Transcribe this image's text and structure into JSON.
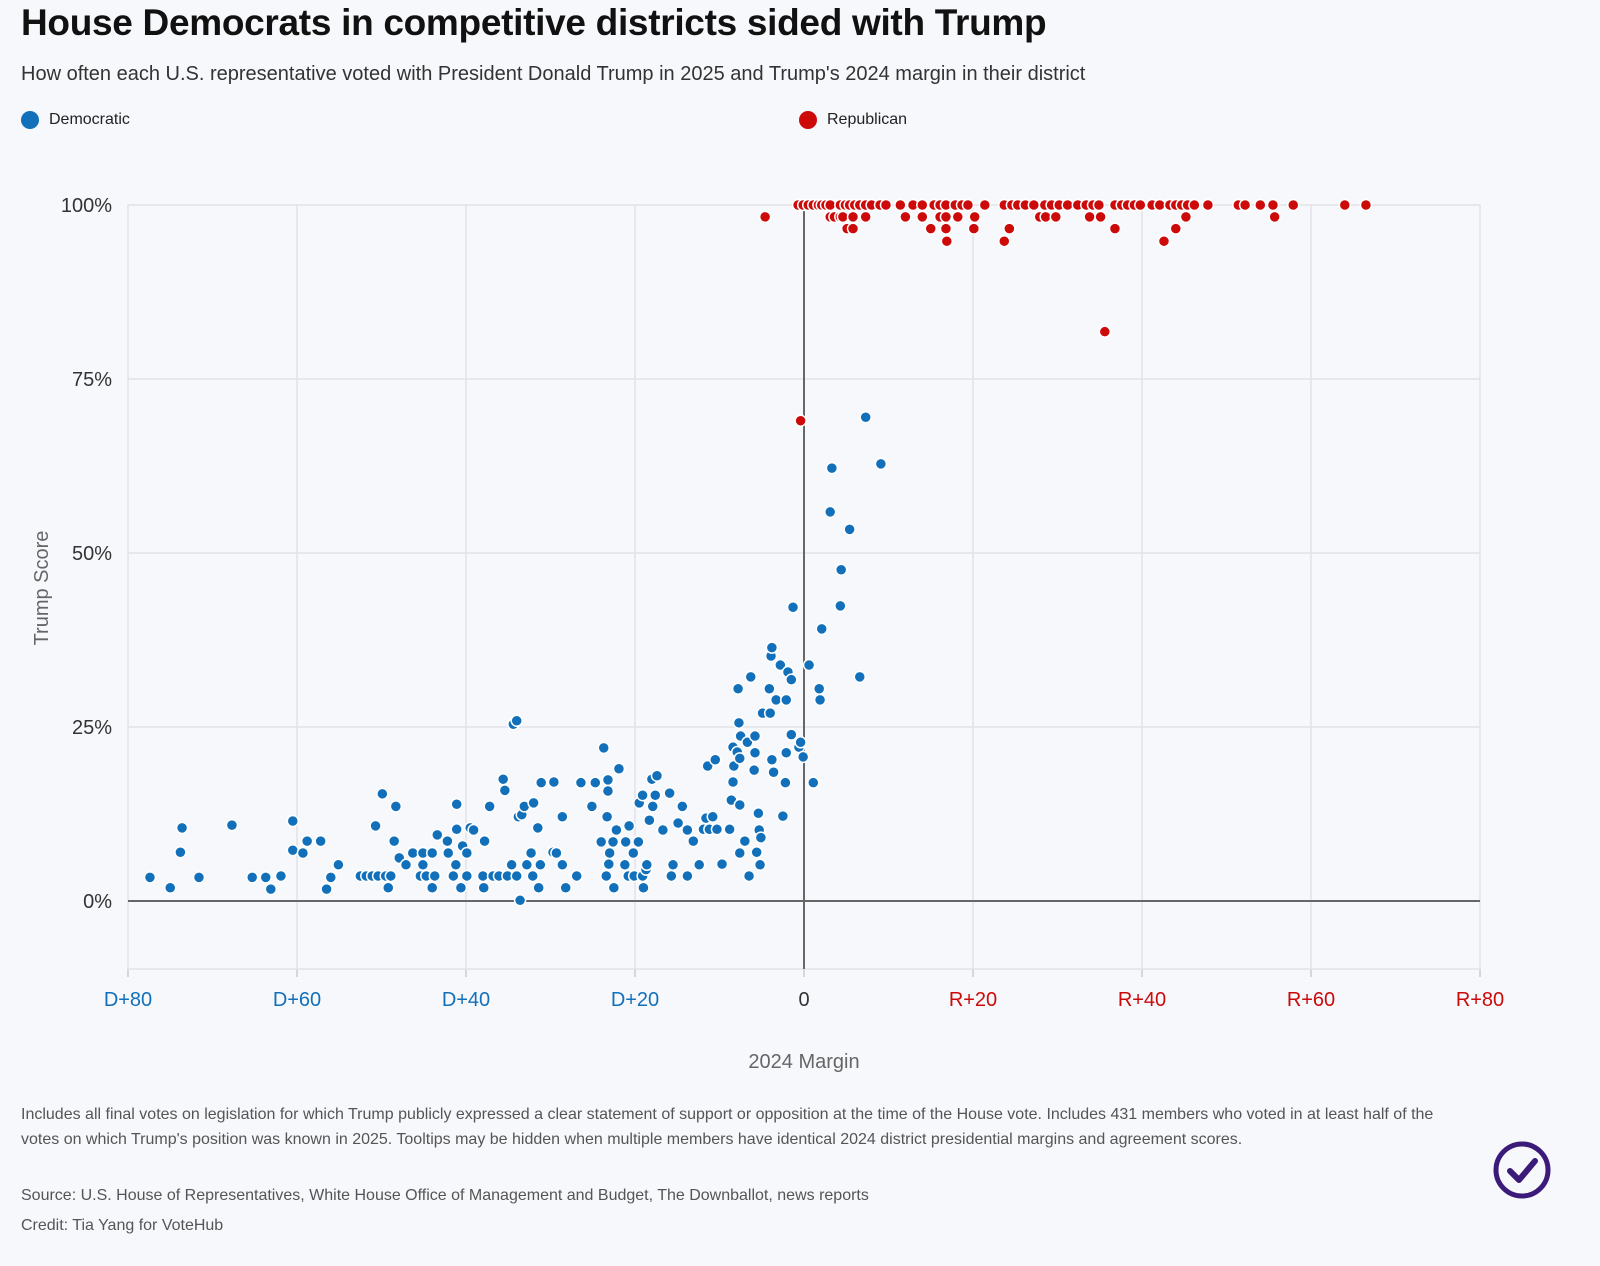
{
  "chart_data": {
    "type": "scatter",
    "title": "House Democrats in competitive districts sided with Trump",
    "subtitle": "How often each U.S. representative voted with President Donald Trump in 2025 and Trump's 2024 margin in their district",
    "xlabel": "2024 Margin",
    "ylabel": "Trump Score",
    "xlim": [
      -80,
      80
    ],
    "ylim": [
      -10,
      100
    ],
    "x_ticks": [
      {
        "value": -80,
        "label": "D+80"
      },
      {
        "value": -60,
        "label": "D+60"
      },
      {
        "value": -40,
        "label": "D+40"
      },
      {
        "value": -20,
        "label": "D+20"
      },
      {
        "value": 0,
        "label": "0"
      },
      {
        "value": 20,
        "label": "R+20"
      },
      {
        "value": 40,
        "label": "R+40"
      },
      {
        "value": 60,
        "label": "R+60"
      },
      {
        "value": 80,
        "label": "R+80"
      }
    ],
    "y_ticks": [
      {
        "value": 0,
        "label": "0%"
      },
      {
        "value": 25,
        "label": "25%"
      },
      {
        "value": 50,
        "label": "50%"
      },
      {
        "value": 75,
        "label": "75%"
      },
      {
        "value": 100,
        "label": "100%"
      }
    ],
    "grid": true,
    "legend_placement": "top",
    "series": [
      {
        "name": "Democratic",
        "color": "#1170b9",
        "points": [
          [
            -77.4,
            3.4
          ],
          [
            -75.0,
            1.9
          ],
          [
            -73.8,
            7.0
          ],
          [
            -73.6,
            10.5
          ],
          [
            -71.6,
            3.4
          ],
          [
            -67.7,
            10.9
          ],
          [
            -65.3,
            3.4
          ],
          [
            -63.7,
            3.4
          ],
          [
            -63.1,
            1.7
          ],
          [
            -61.9,
            3.6
          ],
          [
            -60.5,
            11.5
          ],
          [
            -60.5,
            7.3
          ],
          [
            -59.3,
            6.9
          ],
          [
            -58.8,
            8.6
          ],
          [
            -57.2,
            8.6
          ],
          [
            -56.5,
            1.7
          ],
          [
            -56.0,
            3.4
          ],
          [
            -55.1,
            5.2
          ],
          [
            -52.5,
            3.6
          ],
          [
            -51.8,
            3.6
          ],
          [
            -51.1,
            3.6
          ],
          [
            -50.7,
            10.8
          ],
          [
            -50.4,
            3.6
          ],
          [
            -49.9,
            15.4
          ],
          [
            -49.5,
            3.6
          ],
          [
            -49.2,
            1.9
          ],
          [
            -48.9,
            3.6
          ],
          [
            -48.5,
            8.6
          ],
          [
            -48.3,
            13.6
          ],
          [
            -47.9,
            6.2
          ],
          [
            -47.1,
            5.2
          ],
          [
            -46.3,
            6.9
          ],
          [
            -45.4,
            3.6
          ],
          [
            -45.1,
            6.9
          ],
          [
            -45.1,
            5.2
          ],
          [
            -44.7,
            3.6
          ],
          [
            -44.0,
            6.9
          ],
          [
            -44.0,
            1.9
          ],
          [
            -43.7,
            3.6
          ],
          [
            -43.4,
            9.5
          ],
          [
            -42.2,
            8.6
          ],
          [
            -42.1,
            6.9
          ],
          [
            -41.5,
            3.6
          ],
          [
            -41.2,
            5.2
          ],
          [
            -41.1,
            13.9
          ],
          [
            -41.1,
            10.3
          ],
          [
            -40.6,
            1.9
          ],
          [
            -40.4,
            7.9
          ],
          [
            -39.9,
            6.9
          ],
          [
            -39.9,
            3.6
          ],
          [
            -39.5,
            10.5
          ],
          [
            -39.1,
            10.2
          ],
          [
            -38.0,
            3.6
          ],
          [
            -37.9,
            1.9
          ],
          [
            -37.8,
            8.6
          ],
          [
            -37.2,
            13.6
          ],
          [
            -36.8,
            3.6
          ],
          [
            -36.1,
            3.6
          ],
          [
            -35.6,
            17.5
          ],
          [
            -35.4,
            15.9
          ],
          [
            -35.1,
            3.6
          ],
          [
            -34.6,
            5.2
          ],
          [
            -34.4,
            25.4
          ],
          [
            -34.0,
            25.9
          ],
          [
            -34.0,
            3.6
          ],
          [
            -33.8,
            12.1
          ],
          [
            -33.6,
            0.1
          ],
          [
            -33.4,
            12.4
          ],
          [
            -33.1,
            13.6
          ],
          [
            -32.8,
            5.2
          ],
          [
            -32.3,
            6.9
          ],
          [
            -32.1,
            3.6
          ],
          [
            -32.0,
            14.1
          ],
          [
            -31.5,
            10.5
          ],
          [
            -31.4,
            1.9
          ],
          [
            -31.2,
            5.2
          ],
          [
            -31.1,
            17.0
          ],
          [
            -29.7,
            7.0
          ],
          [
            -29.6,
            17.1
          ],
          [
            -29.3,
            6.9
          ],
          [
            -28.6,
            12.1
          ],
          [
            -28.6,
            5.2
          ],
          [
            -28.2,
            1.9
          ],
          [
            -26.9,
            3.6
          ],
          [
            -26.4,
            17.0
          ],
          [
            -25.1,
            13.6
          ],
          [
            -24.7,
            17.0
          ],
          [
            -24.0,
            8.5
          ],
          [
            -23.7,
            22.0
          ],
          [
            -23.4,
            3.6
          ],
          [
            -23.2,
            17.4
          ],
          [
            -23.3,
            12.1
          ],
          [
            -23.2,
            15.8
          ],
          [
            -23.1,
            5.3
          ],
          [
            -23.0,
            6.9
          ],
          [
            -22.6,
            8.5
          ],
          [
            -22.5,
            1.9
          ],
          [
            -22.2,
            10.2
          ],
          [
            -21.9,
            19.0
          ],
          [
            -21.2,
            5.2
          ],
          [
            -21.1,
            8.5
          ],
          [
            -20.8,
            3.6
          ],
          [
            -20.7,
            10.8
          ],
          [
            -20.2,
            6.9
          ],
          [
            -20.1,
            3.6
          ],
          [
            -19.6,
            8.5
          ],
          [
            -19.5,
            14.1
          ],
          [
            -19.1,
            15.2
          ],
          [
            -19.1,
            3.6
          ],
          [
            -19.0,
            1.9
          ],
          [
            -18.7,
            4.5
          ],
          [
            -18.6,
            5.2
          ],
          [
            -18.3,
            11.6
          ],
          [
            -18.0,
            17.5
          ],
          [
            -17.9,
            13.6
          ],
          [
            -17.6,
            15.2
          ],
          [
            -17.4,
            18.0
          ],
          [
            -16.7,
            10.2
          ],
          [
            -15.9,
            15.5
          ],
          [
            -15.7,
            3.6
          ],
          [
            -15.5,
            5.2
          ],
          [
            -14.9,
            11.2
          ],
          [
            -14.4,
            13.6
          ],
          [
            -13.8,
            3.6
          ],
          [
            -13.8,
            10.2
          ],
          [
            -13.1,
            8.6
          ],
          [
            -12.4,
            5.2
          ],
          [
            -11.9,
            10.3
          ],
          [
            -11.6,
            11.9
          ],
          [
            -11.4,
            19.4
          ],
          [
            -11.2,
            10.3
          ],
          [
            -10.8,
            12.1
          ],
          [
            -10.5,
            20.3
          ],
          [
            -10.3,
            10.3
          ],
          [
            -9.7,
            5.3
          ],
          [
            -8.8,
            10.3
          ],
          [
            -8.6,
            14.5
          ],
          [
            -8.4,
            22.1
          ],
          [
            -8.4,
            17.1
          ],
          [
            -8.3,
            19.4
          ],
          [
            -7.9,
            21.4
          ],
          [
            -7.8,
            30.5
          ],
          [
            -7.7,
            25.6
          ],
          [
            -7.6,
            6.9
          ],
          [
            -7.6,
            13.8
          ],
          [
            -7.6,
            20.5
          ],
          [
            -7.5,
            23.7
          ],
          [
            -7.0,
            8.6
          ],
          [
            -6.7,
            22.8
          ],
          [
            -6.5,
            3.6
          ],
          [
            -6.3,
            32.2
          ],
          [
            -5.9,
            18.8
          ],
          [
            -5.8,
            23.7
          ],
          [
            -5.8,
            21.3
          ],
          [
            -5.6,
            7.0
          ],
          [
            -5.4,
            12.6
          ],
          [
            -5.3,
            10.2
          ],
          [
            -5.2,
            5.2
          ],
          [
            -5.1,
            9.1
          ],
          [
            -4.9,
            27.0
          ],
          [
            -4.1,
            30.5
          ],
          [
            -4.0,
            27.0
          ],
          [
            -3.9,
            35.2
          ],
          [
            -3.8,
            20.3
          ],
          [
            -3.8,
            36.4
          ],
          [
            -3.6,
            18.5
          ],
          [
            -3.3,
            28.9
          ],
          [
            -2.8,
            33.9
          ],
          [
            -2.5,
            12.2
          ],
          [
            -2.2,
            17.0
          ],
          [
            -2.1,
            28.9
          ],
          [
            -2.1,
            21.3
          ],
          [
            -1.9,
            32.9
          ],
          [
            -1.5,
            31.8
          ],
          [
            -1.5,
            23.9
          ],
          [
            -1.3,
            42.2
          ],
          [
            -0.6,
            22.1
          ],
          [
            -0.4,
            22.8
          ],
          [
            -0.1,
            20.7
          ],
          [
            0.6,
            33.9
          ],
          [
            1.1,
            17.0
          ],
          [
            1.8,
            30.5
          ],
          [
            1.9,
            28.9
          ],
          [
            2.1,
            39.1
          ],
          [
            3.1,
            55.9
          ],
          [
            3.3,
            62.2
          ],
          [
            4.3,
            42.4
          ],
          [
            4.4,
            47.6
          ],
          [
            5.4,
            53.4
          ],
          [
            6.6,
            32.2
          ],
          [
            7.3,
            69.5
          ],
          [
            9.1,
            62.8
          ]
        ]
      },
      {
        "name": "Republican",
        "color": "#cc0a0a",
        "points": [
          [
            -4.6,
            98.3
          ],
          [
            -0.4,
            69.0
          ],
          [
            35.6,
            81.8
          ],
          [
            -0.7,
            100
          ],
          [
            -0.1,
            100
          ],
          [
            0.5,
            100
          ],
          [
            1.1,
            100
          ],
          [
            1.7,
            100
          ],
          [
            2.1,
            100
          ],
          [
            2.6,
            100
          ],
          [
            3.1,
            100
          ],
          [
            4.3,
            100
          ],
          [
            4.9,
            100
          ],
          [
            5.4,
            100
          ],
          [
            6.0,
            100
          ],
          [
            6.6,
            100
          ],
          [
            7.3,
            100
          ],
          [
            8.0,
            100
          ],
          [
            9.0,
            100
          ],
          [
            9.7,
            100
          ],
          [
            11.4,
            100
          ],
          [
            12.9,
            100
          ],
          [
            14.0,
            100
          ],
          [
            15.4,
            100
          ],
          [
            16.1,
            100
          ],
          [
            16.8,
            100
          ],
          [
            17.9,
            100
          ],
          [
            18.7,
            100
          ],
          [
            19.4,
            100
          ],
          [
            21.4,
            100
          ],
          [
            23.7,
            100
          ],
          [
            24.6,
            100
          ],
          [
            25.3,
            100
          ],
          [
            26.2,
            100
          ],
          [
            27.2,
            100
          ],
          [
            28.5,
            100
          ],
          [
            29.3,
            100
          ],
          [
            30.2,
            100
          ],
          [
            31.2,
            100
          ],
          [
            32.4,
            100
          ],
          [
            33.4,
            100
          ],
          [
            34.2,
            100
          ],
          [
            34.9,
            100
          ],
          [
            36.8,
            100
          ],
          [
            37.6,
            100
          ],
          [
            38.3,
            100
          ],
          [
            39.1,
            100
          ],
          [
            39.8,
            100
          ],
          [
            41.2,
            100
          ],
          [
            42.1,
            100
          ],
          [
            43.3,
            100
          ],
          [
            44.0,
            100
          ],
          [
            44.7,
            100
          ],
          [
            45.4,
            100
          ],
          [
            46.2,
            100
          ],
          [
            47.8,
            100
          ],
          [
            51.4,
            100
          ],
          [
            52.2,
            100
          ],
          [
            54.0,
            100
          ],
          [
            55.5,
            100
          ],
          [
            57.9,
            100
          ],
          [
            64.0,
            100
          ],
          [
            66.5,
            100
          ],
          [
            3.1,
            98.3
          ],
          [
            3.6,
            98.3
          ],
          [
            4.3,
            98.3
          ],
          [
            4.6,
            98.3
          ],
          [
            5.8,
            98.3
          ],
          [
            7.3,
            98.3
          ],
          [
            12.0,
            98.3
          ],
          [
            14.0,
            98.3
          ],
          [
            16.1,
            98.3
          ],
          [
            16.8,
            98.3
          ],
          [
            18.2,
            98.3
          ],
          [
            20.2,
            98.3
          ],
          [
            27.9,
            98.3
          ],
          [
            28.6,
            98.3
          ],
          [
            29.8,
            98.3
          ],
          [
            33.8,
            98.3
          ],
          [
            35.1,
            98.3
          ],
          [
            45.2,
            98.3
          ],
          [
            55.7,
            98.3
          ],
          [
            5.1,
            96.6
          ],
          [
            5.8,
            96.6
          ],
          [
            15.0,
            96.6
          ],
          [
            16.8,
            96.6
          ],
          [
            20.1,
            96.6
          ],
          [
            24.3,
            96.6
          ],
          [
            36.8,
            96.6
          ],
          [
            44.0,
            96.6
          ],
          [
            16.9,
            94.8
          ],
          [
            23.7,
            94.8
          ],
          [
            42.6,
            94.8
          ]
        ]
      }
    ]
  },
  "legend": {
    "democratic": "Democratic",
    "republican": "Republican"
  },
  "footer": {
    "notes": "Includes all final votes on legislation for which Trump publicly expressed a clear statement of support or opposition at the time of the House vote. Includes 431 members who voted in at least half of the votes on which Trump's position was known in 2025. Tooltips may be hidden when multiple members have identical 2024 district presidential margins and agreement scores.",
    "source": "Source: U.S. House of Representatives, White House Office of Management and Budget, The Downballot, news reports",
    "credit": "Credit: Tia Yang for VoteHub"
  },
  "colors": {
    "democratic": "#1170b9",
    "republican": "#cc0a0a",
    "badge": "#3b1a7a"
  }
}
